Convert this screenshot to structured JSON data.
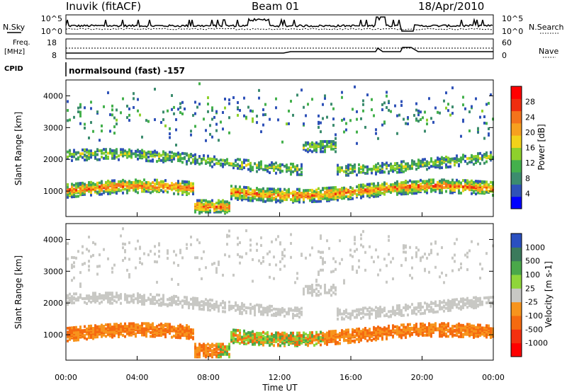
{
  "header": {
    "station": "Inuvik (fitACF)",
    "beam": "Beam 01",
    "date": "18/Apr/2010"
  },
  "left_labels": {
    "nsky": "N.Sky",
    "freq": "Freq.",
    "mhz": "[MHz]",
    "cpid": "CPID"
  },
  "right_labels": {
    "nsearch": "N.Search",
    "nave": "Nave"
  },
  "cpid_text": "normalsound (fast) -157",
  "colors": {
    "power_scale": [
      "#0000ff",
      "#2f52b8",
      "#3c8c6e",
      "#44b04c",
      "#8ed02c",
      "#f2d21a",
      "#f7a01f",
      "#f4731c",
      "#ef2d0f",
      "#ff0000"
    ],
    "velocity_scale": [
      "#2a50c0",
      "#3b7a5c",
      "#4aa84a",
      "#8fd63a",
      "#c8c8c4",
      "#f7941d",
      "#f56a10",
      "#f43010",
      "#ff0000"
    ]
  },
  "chart_data": [
    {
      "type": "line",
      "name": "noise_panel",
      "left_ticks": [
        "10^5",
        "10^0"
      ],
      "right_ticks": [
        "10^5",
        "10^0"
      ]
    },
    {
      "type": "line",
      "name": "freq_panel",
      "left_ticks": [
        "18",
        "8"
      ],
      "right_ticks": [
        "60",
        "0"
      ]
    },
    {
      "type": "heatmap",
      "name": "power",
      "ylabel": "Slant Range [km]",
      "yticks": [
        "1000",
        "2000",
        "3000",
        "4000"
      ],
      "ylim": [
        200,
        4500
      ],
      "colorbar_label": "Power [dB]",
      "colorbar_ticks": [
        "4",
        "8",
        "12",
        "16",
        "20",
        "24",
        "28"
      ]
    },
    {
      "type": "heatmap",
      "name": "velocity",
      "ylabel": "Slant Range [km]",
      "yticks": [
        "1000",
        "2000",
        "3000",
        "4000"
      ],
      "ylim": [
        200,
        4500
      ],
      "colorbar_label": "Velocity [m s-1]",
      "colorbar_ticks": [
        "1000",
        "500",
        "100",
        "25",
        "-25",
        "-100",
        "-500",
        "-1000"
      ],
      "xlabel": "Time UT",
      "xticks": [
        "00:00",
        "04:00",
        "08:00",
        "12:00",
        "16:00",
        "20:00",
        "00:00"
      ]
    }
  ]
}
